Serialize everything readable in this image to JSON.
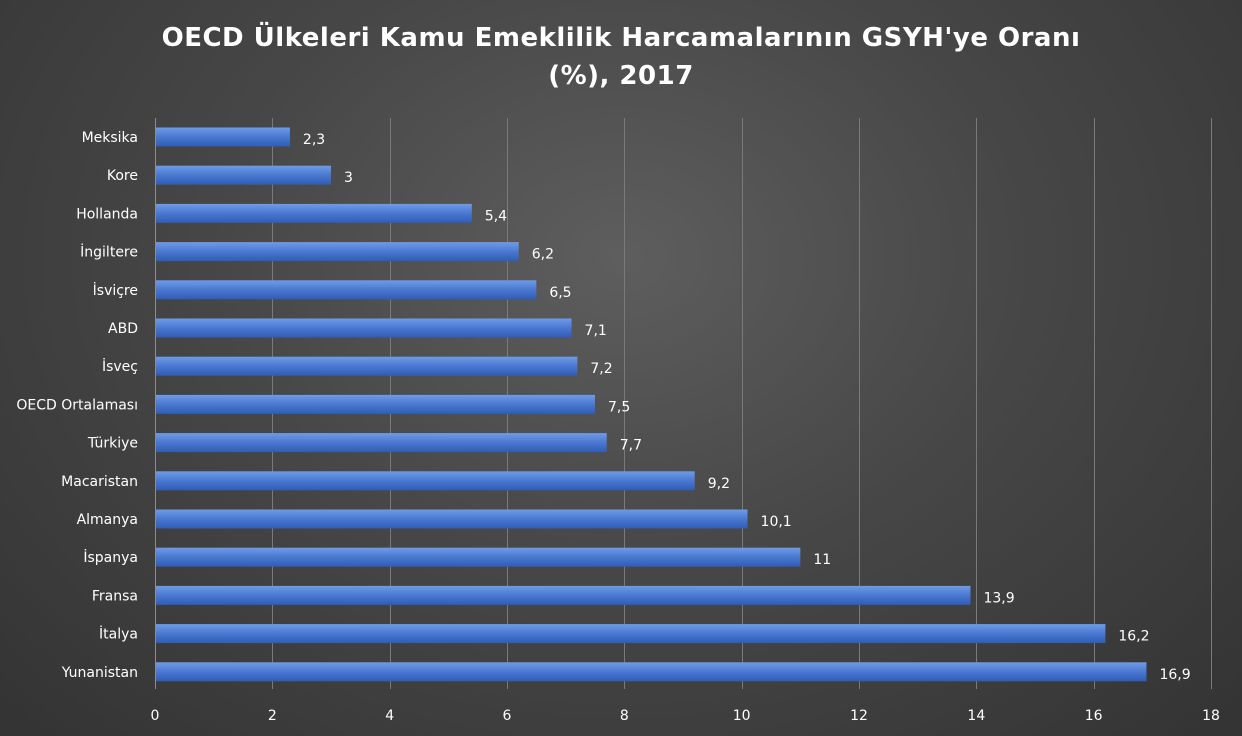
{
  "chart_data": {
    "type": "bar",
    "orientation": "horizontal",
    "title": "OECD Ülkeleri Kamu Emeklilik Harcamalarının GSYH'ye Oranı (%), 2017",
    "title_lines": [
      "OECD Ülkeleri Kamu Emeklilik Harcamalarının GSYH'ye Oranı",
      "(%), 2017"
    ],
    "categories": [
      "Meksika",
      "Kore",
      "Hollanda",
      "İngiltere",
      "İsviçre",
      "ABD",
      "İsveç",
      "OECD Ortalaması",
      "Türkiye",
      "Macaristan",
      "Almanya",
      "İspanya",
      "Fransa",
      "İtalya",
      "Yunanistan"
    ],
    "values": [
      2.3,
      3,
      5.4,
      6.2,
      6.5,
      7.1,
      7.2,
      7.5,
      7.7,
      9.2,
      10.1,
      11,
      13.9,
      16.2,
      16.9
    ],
    "value_labels": [
      "2,3",
      "3",
      "5,4",
      "6,2",
      "6,5",
      "7,1",
      "7,2",
      "7,5",
      "7,7",
      "9,2",
      "10,1",
      "11",
      "13,9",
      "16,2",
      "16,9"
    ],
    "xlim": [
      0,
      18
    ],
    "x_ticks": [
      0,
      2,
      4,
      6,
      8,
      10,
      12,
      14,
      16,
      18
    ],
    "x_tick_labels": [
      "0",
      "2",
      "4",
      "6",
      "8",
      "10",
      "12",
      "14",
      "16",
      "18"
    ],
    "grid": true,
    "legend": "none",
    "colors": {
      "bar_top": "#6f9be6",
      "bar_bottom": "#2f5cb5",
      "text": "#ffffff",
      "grid": "#7a7a7a"
    }
  }
}
